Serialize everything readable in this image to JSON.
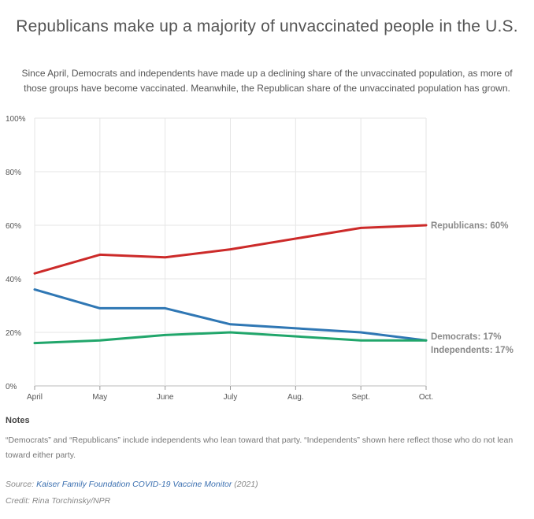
{
  "title": "Republicans make up a majority of unvaccinated people in the U.S.",
  "subtitle": "Since April, Democrats and independents have made up a declining share of the unvaccinated population, as more of those groups have become vaccinated. Meanwhile, the Republican share of the unvaccinated population has grown.",
  "notes": {
    "heading": "Notes",
    "text": "“Democrats” and “Republicans” include independents who lean toward that party. “Independents” shown here reflect those who do not lean toward either party."
  },
  "source": {
    "prefix": "Source: ",
    "link_text": "Kaiser Family Foundation COVID-19 Vaccine Monitor",
    "suffix": " (2021)"
  },
  "credit": "Credit: Rina Torchinsky/NPR",
  "chart_data": {
    "type": "line",
    "title": "Republicans make up a majority of unvaccinated people in the U.S.",
    "xlabel": "",
    "ylabel": "",
    "categories": [
      "April",
      "May",
      "June",
      "July",
      "Aug.",
      "Sept.",
      "Oct."
    ],
    "x": [
      0,
      1,
      2,
      3,
      4,
      5,
      6
    ],
    "ylim": [
      0,
      100
    ],
    "yticks": [
      0,
      20,
      40,
      60,
      80,
      100
    ],
    "ytick_labels": [
      "0%",
      "20%",
      "40%",
      "60%",
      "80%",
      "100%"
    ],
    "grid": true,
    "series": [
      {
        "name": "Republicans",
        "color": "#cc2a29",
        "x": [
          0,
          1,
          2,
          3,
          5,
          6
        ],
        "values": [
          42,
          49,
          48,
          51,
          59,
          60
        ],
        "end_label": "Republicans: 60%"
      },
      {
        "name": "Democrats",
        "color": "#2f77b4",
        "x": [
          0,
          1,
          2,
          3,
          5,
          6
        ],
        "values": [
          36,
          29,
          29,
          23,
          20,
          17
        ],
        "end_label": "Democrats: 17%"
      },
      {
        "name": "Independents",
        "color": "#21a66b",
        "x": [
          0,
          1,
          2,
          3,
          5,
          6
        ],
        "values": [
          16,
          17,
          19,
          20,
          17,
          17
        ],
        "end_label": "Independents: 17%"
      }
    ]
  }
}
